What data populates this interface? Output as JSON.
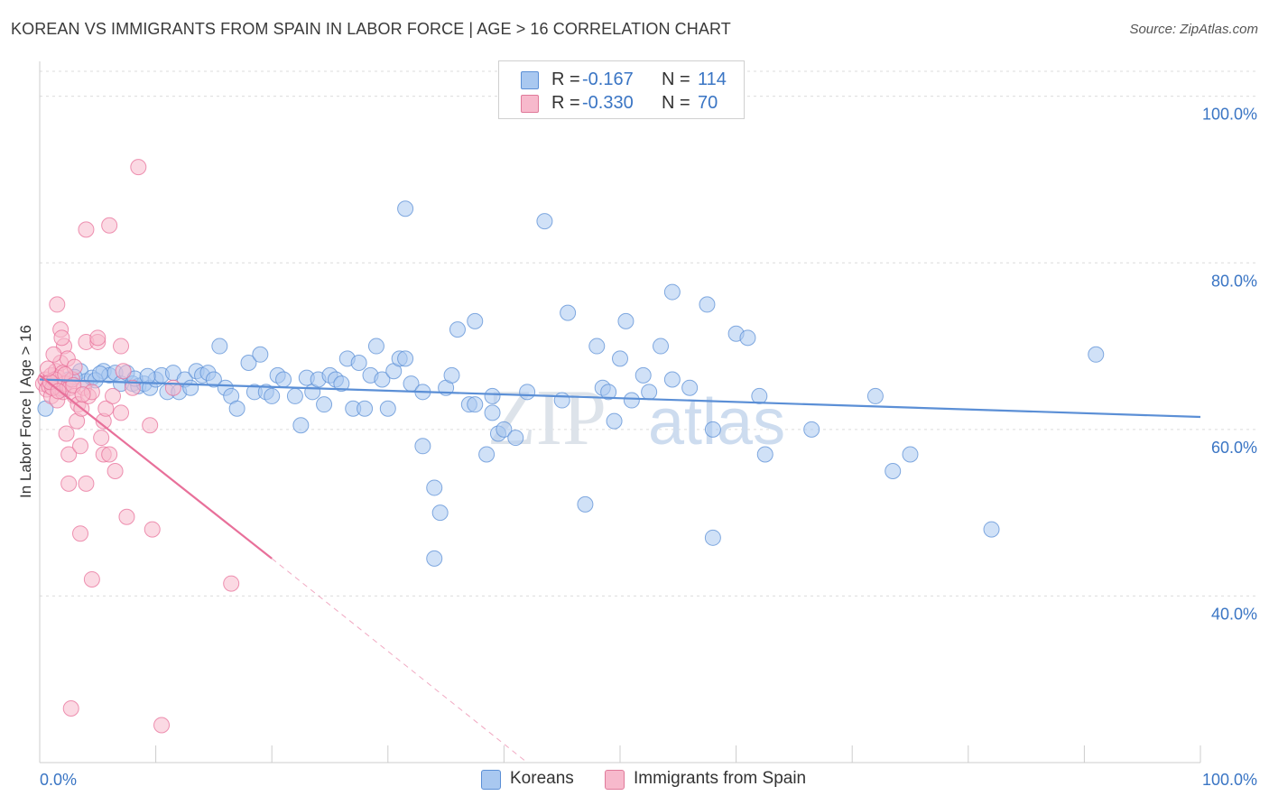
{
  "title": "KOREAN VS IMMIGRANTS FROM SPAIN IN LABOR FORCE | AGE > 16 CORRELATION CHART",
  "source": "Source: ZipAtlas.com",
  "watermark": {
    "zip": "ZIP",
    "atlas": "atlas"
  },
  "legend": {
    "rows": [
      {
        "r_label": "R =",
        "r_value": "-0.167",
        "n_label": "N =",
        "n_value": "114",
        "color": "#a9c8f0",
        "border": "#5b8fd6"
      },
      {
        "r_label": "R =",
        "r_value": "-0.330",
        "n_label": "N =",
        "n_value": "70",
        "color": "#f7b9cc",
        "border": "#e07a9a"
      }
    ]
  },
  "bottom_legend": [
    {
      "label": "Koreans",
      "color": "#a9c8f0",
      "border": "#5b8fd6"
    },
    {
      "label": "Immigrants from Spain",
      "color": "#f7b9cc",
      "border": "#e07a9a"
    }
  ],
  "chart_data": {
    "type": "scatter",
    "title": "KOREAN VS IMMIGRANTS FROM SPAIN IN LABOR FORCE | AGE > 16 CORRELATION CHART",
    "xlabel": "",
    "ylabel": "In Labor Force | Age > 16",
    "xlim": [
      0,
      100
    ],
    "ylim": [
      20,
      103
    ],
    "x_tick_labels": [
      "0.0%",
      "100.0%"
    ],
    "y_ticks": [
      40,
      60,
      80,
      100
    ],
    "y_tick_labels": [
      "40.0%",
      "60.0%",
      "80.0%",
      "100.0%"
    ],
    "grid": true,
    "legend_position": "top-center",
    "series": [
      {
        "name": "Koreans",
        "color": "#5b8fd6",
        "fill": "#a9c8f0",
        "trend": {
          "x": [
            0,
            100
          ],
          "y": [
            66.0,
            61.5
          ]
        },
        "points": [
          [
            0.5,
            62.5
          ],
          [
            1.5,
            65.5
          ],
          [
            2.5,
            66.0
          ],
          [
            3.5,
            67.0
          ],
          [
            4.0,
            65.8
          ],
          [
            4.5,
            66.2
          ],
          [
            5.5,
            67.0
          ],
          [
            6.0,
            66.5
          ],
          [
            6.5,
            66.8
          ],
          [
            7.0,
            65.5
          ],
          [
            7.5,
            66.8
          ],
          [
            8.0,
            65.5
          ],
          [
            8.5,
            65.2
          ],
          [
            9.0,
            65.5
          ],
          [
            9.5,
            65.0
          ],
          [
            10.0,
            66.0
          ],
          [
            10.5,
            66.5
          ],
          [
            11.0,
            64.5
          ],
          [
            11.5,
            66.8
          ],
          [
            12.0,
            64.5
          ],
          [
            12.5,
            66.0
          ],
          [
            13.0,
            65.0
          ],
          [
            13.5,
            67.0
          ],
          [
            14.0,
            66.5
          ],
          [
            14.5,
            66.8
          ],
          [
            15.0,
            66.0
          ],
          [
            15.5,
            70.0
          ],
          [
            16.0,
            65.0
          ],
          [
            16.5,
            64.0
          ],
          [
            17.0,
            62.5
          ],
          [
            18.0,
            68.0
          ],
          [
            18.5,
            64.5
          ],
          [
            19.0,
            69.0
          ],
          [
            19.5,
            64.5
          ],
          [
            20.0,
            64.0
          ],
          [
            20.5,
            66.5
          ],
          [
            21.0,
            66.0
          ],
          [
            22.0,
            64.0
          ],
          [
            22.5,
            60.5
          ],
          [
            23.0,
            66.2
          ],
          [
            23.5,
            64.5
          ],
          [
            24.0,
            66.0
          ],
          [
            24.5,
            63.0
          ],
          [
            25.0,
            66.5
          ],
          [
            25.5,
            66.0
          ],
          [
            26.0,
            65.5
          ],
          [
            26.5,
            68.5
          ],
          [
            27.0,
            62.5
          ],
          [
            27.5,
            68.0
          ],
          [
            28.0,
            62.5
          ],
          [
            28.5,
            66.5
          ],
          [
            29.0,
            70.0
          ],
          [
            29.5,
            66.0
          ],
          [
            30.0,
            62.5
          ],
          [
            30.5,
            67.0
          ],
          [
            31.0,
            68.5
          ],
          [
            31.5,
            68.5
          ],
          [
            32.0,
            65.5
          ],
          [
            31.5,
            86.5
          ],
          [
            33.0,
            64.5
          ],
          [
            33.0,
            58.0
          ],
          [
            34.0,
            53.0
          ],
          [
            34.5,
            50.0
          ],
          [
            34.0,
            44.5
          ],
          [
            35.0,
            65.0
          ],
          [
            35.5,
            66.5
          ],
          [
            36.0,
            72.0
          ],
          [
            37.0,
            63.0
          ],
          [
            37.5,
            73.0
          ],
          [
            37.5,
            63.0
          ],
          [
            38.5,
            57.0
          ],
          [
            39.0,
            62.0
          ],
          [
            39.0,
            64.0
          ],
          [
            39.5,
            59.5
          ],
          [
            40.0,
            60.0
          ],
          [
            41.0,
            59.0
          ],
          [
            42.0,
            64.5
          ],
          [
            43.5,
            85.0
          ],
          [
            45.0,
            63.5
          ],
          [
            45.5,
            74.0
          ],
          [
            47.0,
            51.0
          ],
          [
            48.0,
            70.0
          ],
          [
            48.5,
            65.0
          ],
          [
            49.0,
            64.5
          ],
          [
            49.5,
            61.0
          ],
          [
            50.0,
            68.5
          ],
          [
            50.5,
            73.0
          ],
          [
            51.0,
            63.5
          ],
          [
            52.0,
            66.5
          ],
          [
            52.5,
            64.5
          ],
          [
            53.5,
            70.0
          ],
          [
            54.5,
            76.5
          ],
          [
            54.5,
            66.0
          ],
          [
            56.0,
            65.0
          ],
          [
            57.5,
            75.0
          ],
          [
            58.0,
            47.0
          ],
          [
            58.0,
            60.0
          ],
          [
            60.0,
            71.5
          ],
          [
            61.0,
            71.0
          ],
          [
            62.0,
            64.0
          ],
          [
            62.5,
            57.0
          ],
          [
            66.5,
            60.0
          ],
          [
            72.0,
            64.0
          ],
          [
            73.5,
            55.0
          ],
          [
            75.0,
            57.0
          ],
          [
            82.0,
            48.0
          ],
          [
            91.0,
            69.0
          ],
          [
            1.0,
            65.5
          ],
          [
            2.0,
            64.8
          ],
          [
            3.0,
            66.3
          ],
          [
            4.8,
            65.9
          ],
          [
            5.2,
            66.7
          ],
          [
            8.2,
            66.1
          ],
          [
            9.3,
            66.4
          ]
        ]
      },
      {
        "name": "Immigrants from Spain",
        "color": "#e8709a",
        "fill": "#f7b9cc",
        "trend": {
          "x": [
            0,
            20
          ],
          "y": [
            66.5,
            44.5
          ]
        },
        "trend_dashed": {
          "x": [
            20,
            42
          ],
          "y": [
            44.5,
            20.0
          ]
        },
        "points": [
          [
            0.3,
            65.5
          ],
          [
            0.5,
            66.0
          ],
          [
            0.6,
            64.8
          ],
          [
            0.8,
            65.2
          ],
          [
            1.0,
            66.5
          ],
          [
            1.0,
            64.0
          ],
          [
            1.2,
            65.8
          ],
          [
            1.4,
            67.0
          ],
          [
            1.5,
            63.5
          ],
          [
            1.6,
            66.2
          ],
          [
            1.7,
            65.0
          ],
          [
            1.8,
            68.0
          ],
          [
            1.8,
            72.0
          ],
          [
            2.0,
            66.8
          ],
          [
            2.0,
            64.5
          ],
          [
            2.1,
            70.0
          ],
          [
            2.2,
            65.5
          ],
          [
            2.3,
            59.5
          ],
          [
            2.4,
            68.5
          ],
          [
            2.5,
            57.0
          ],
          [
            2.5,
            53.5
          ],
          [
            2.6,
            65.0
          ],
          [
            2.8,
            66.0
          ],
          [
            3.0,
            64.0
          ],
          [
            3.0,
            67.5
          ],
          [
            3.2,
            61.0
          ],
          [
            3.3,
            63.0
          ],
          [
            3.5,
            58.0
          ],
          [
            3.5,
            47.5
          ],
          [
            3.6,
            62.5
          ],
          [
            3.8,
            65.0
          ],
          [
            4.0,
            70.5
          ],
          [
            4.0,
            53.5
          ],
          [
            4.2,
            64.0
          ],
          [
            4.5,
            42.0
          ],
          [
            4.5,
            64.5
          ],
          [
            5.0,
            70.5
          ],
          [
            5.0,
            71.0
          ],
          [
            5.3,
            59.0
          ],
          [
            5.5,
            57.0
          ],
          [
            5.5,
            61.0
          ],
          [
            5.7,
            62.5
          ],
          [
            6.0,
            57.0
          ],
          [
            6.0,
            84.5
          ],
          [
            6.3,
            64.0
          ],
          [
            6.5,
            55.0
          ],
          [
            7.0,
            62.0
          ],
          [
            7.0,
            70.0
          ],
          [
            7.2,
            67.0
          ],
          [
            7.5,
            49.5
          ],
          [
            8.0,
            65.0
          ],
          [
            8.5,
            91.5
          ],
          [
            9.5,
            60.5
          ],
          [
            9.7,
            48.0
          ],
          [
            11.5,
            65.0
          ],
          [
            16.5,
            41.5
          ],
          [
            1.5,
            75.0
          ],
          [
            1.9,
            71.0
          ],
          [
            2.7,
            26.5
          ],
          [
            4.0,
            84.0
          ],
          [
            10.5,
            24.5
          ],
          [
            1.1,
            65.0
          ],
          [
            1.3,
            66.0
          ],
          [
            0.9,
            65.7
          ],
          [
            1.6,
            64.6
          ],
          [
            2.2,
            66.6
          ],
          [
            0.7,
            67.3
          ],
          [
            2.9,
            65.3
          ],
          [
            3.7,
            64.2
          ],
          [
            1.2,
            69.0
          ]
        ]
      }
    ]
  }
}
